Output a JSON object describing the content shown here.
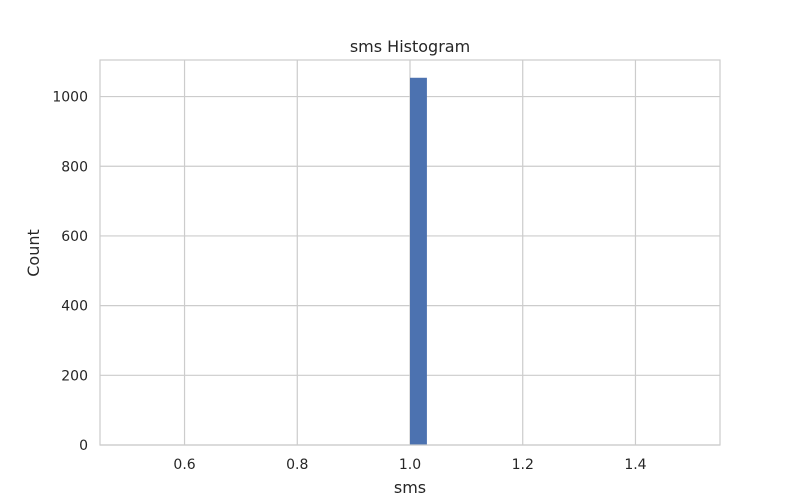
{
  "chart_data": {
    "type": "bar",
    "title": "sms Histogram",
    "xlabel": "sms",
    "ylabel": "Count",
    "xlim": [
      0.45,
      1.55
    ],
    "ylim": [
      0,
      1105
    ],
    "xticks": [
      0.6,
      0.8,
      1.0,
      1.2,
      1.4
    ],
    "xtick_labels": [
      "0.6",
      "0.8",
      "1.0",
      "1.2",
      "1.4"
    ],
    "yticks": [
      0,
      200,
      400,
      600,
      800,
      1000
    ],
    "ytick_labels": [
      "0",
      "200",
      "400",
      "600",
      "800",
      "1000"
    ],
    "bins": [
      {
        "x0": 1.0,
        "x1": 1.03,
        "count": 1054
      }
    ],
    "grid": true,
    "colors": {
      "bar": "#4c72b0",
      "grid": "#cccccc",
      "frame": "#cccccc"
    }
  }
}
